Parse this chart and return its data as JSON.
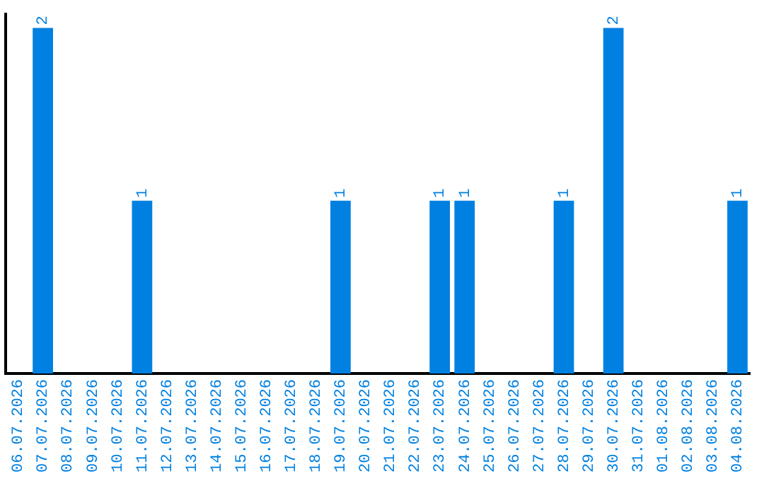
{
  "chart_data": {
    "type": "bar",
    "categories": [
      "06.07.2026",
      "07.07.2026",
      "08.07.2026",
      "09.07.2026",
      "10.07.2026",
      "11.07.2026",
      "12.07.2026",
      "13.07.2026",
      "14.07.2026",
      "15.07.2026",
      "16.07.2026",
      "17.07.2026",
      "18.07.2026",
      "19.07.2026",
      "20.07.2026",
      "21.07.2026",
      "22.07.2026",
      "23.07.2026",
      "24.07.2026",
      "25.07.2026",
      "26.07.2026",
      "27.07.2026",
      "28.07.2026",
      "29.07.2026",
      "30.07.2026",
      "31.07.2026",
      "01.08.2026",
      "02.08.2026",
      "03.08.2026",
      "04.08.2026"
    ],
    "values": [
      0,
      2,
      0,
      0,
      0,
      1,
      0,
      0,
      0,
      0,
      0,
      0,
      0,
      1,
      0,
      0,
      0,
      1,
      1,
      0,
      0,
      0,
      1,
      0,
      2,
      0,
      0,
      0,
      0,
      1
    ],
    "value_labels": [
      null,
      "2",
      null,
      null,
      null,
      "1",
      null,
      null,
      null,
      null,
      null,
      null,
      null,
      "1",
      null,
      null,
      null,
      "1",
      "1",
      null,
      null,
      null,
      "1",
      null,
      "2",
      null,
      null,
      null,
      null,
      "1"
    ],
    "color": "#0080e0",
    "ylim": [
      0,
      2.08
    ],
    "tick_labels": "x",
    "grid": false,
    "legend": false
  }
}
